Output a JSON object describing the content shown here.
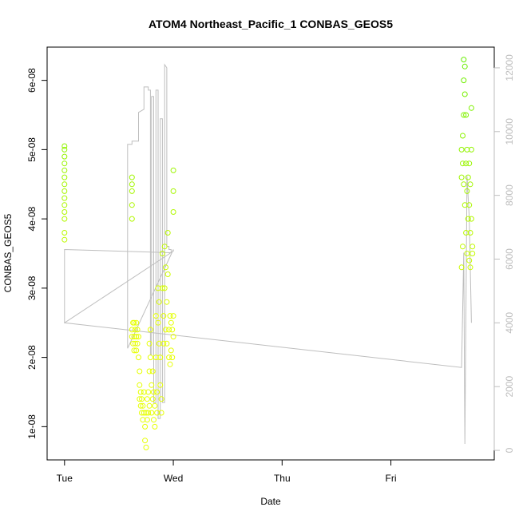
{
  "chart_data": {
    "type": "scatter",
    "title": "ATOM4 Northeast_Pacific_1 CONBAS_GEOS5",
    "xlabel": "Date",
    "ylabel": "CONBAS_GEOS5",
    "y2label": "",
    "grid": false,
    "legend": "none",
    "x_ticks": [
      {
        "value": 0,
        "label": "Tue"
      },
      {
        "value": 1,
        "label": "Wed"
      },
      {
        "value": 2,
        "label": "Thu"
      },
      {
        "value": 3,
        "label": "Fri"
      }
    ],
    "y_ticks": [
      {
        "value": 1e-08,
        "label": "1e-08"
      },
      {
        "value": 2e-08,
        "label": "2e-08"
      },
      {
        "value": 3e-08,
        "label": "3e-08"
      },
      {
        "value": 4e-08,
        "label": "4e-08"
      },
      {
        "value": 5e-08,
        "label": "5e-08"
      },
      {
        "value": 6e-08,
        "label": "6e-08"
      }
    ],
    "y2_ticks": [
      {
        "value": 0,
        "label": "0"
      },
      {
        "value": 2000,
        "label": "2000"
      },
      {
        "value": 4000,
        "label": "4000"
      },
      {
        "value": 6000,
        "label": "6000"
      },
      {
        "value": 8000,
        "label": "8000"
      },
      {
        "value": 10000,
        "label": "10000"
      },
      {
        "value": 12000,
        "label": "12000"
      }
    ],
    "xlim": [
      -0.16,
      3.95
    ],
    "ylim": [
      5.2e-09,
      6.48e-08
    ],
    "y2lim": [
      -300,
      12650
    ],
    "colors": {
      "axis": "#000000",
      "altitude_line": "#bebebe",
      "right_axis": "#bdbdbd",
      "point_low": "#e6ff00",
      "point_high": "#66ee00"
    },
    "altitude_series": {
      "x": [
        0.0,
        0.0,
        0.0,
        1.0,
        1.0,
        0.58,
        0.58,
        0.62,
        0.62,
        0.68,
        0.68,
        0.73,
        0.73,
        0.77,
        0.77,
        0.79,
        0.79,
        0.8,
        0.8,
        0.82,
        0.82,
        0.84,
        0.84,
        0.86,
        0.86,
        0.88,
        0.88,
        0.9,
        0.9,
        0.92,
        0.92,
        0.94,
        0.94,
        0.96,
        0.96,
        0.98,
        0.98,
        0.0,
        0.0,
        3.65,
        3.65,
        3.67,
        3.67,
        3.68,
        3.68,
        3.7,
        3.7,
        3.72,
        3.72,
        3.74,
        3.74
      ],
      "y": [
        6300,
        6300,
        4000,
        6250,
        6300,
        3200,
        9600,
        9600,
        9700,
        9700,
        10600,
        10700,
        11400,
        11400,
        11300,
        11300,
        3000,
        3000,
        11100,
        11100,
        1500,
        1500,
        11300,
        11300,
        1000,
        1000,
        10400,
        10400,
        1500,
        1500,
        12100,
        12000,
        6400,
        6400,
        6300,
        6300,
        6200,
        6300,
        4000,
        2600,
        2600,
        6200,
        6200,
        200,
        200,
        8600,
        8600,
        7300,
        7300,
        4000,
        4000
      ]
    },
    "series": [
      {
        "x": [
          0.0,
          0.0,
          0.0,
          0.0,
          0.0,
          0.0,
          0.0,
          0.0,
          0.0,
          0.0,
          0.0,
          0.0,
          0.0,
          0.0,
          0.62,
          0.62,
          0.62,
          0.62,
          0.62,
          0.62,
          0.62,
          0.63,
          0.63,
          0.64,
          0.64,
          0.64,
          0.65,
          0.65,
          0.66,
          0.66,
          0.66,
          0.67,
          0.67,
          0.68,
          0.68,
          0.69,
          0.69,
          0.69,
          0.7,
          0.7,
          0.71,
          0.71,
          0.72,
          0.72,
          0.73,
          0.73,
          0.74,
          0.74,
          0.75,
          0.75,
          0.76,
          0.76,
          0.77,
          0.77,
          0.78,
          0.78,
          0.78,
          0.79,
          0.79,
          0.8,
          0.8,
          0.81,
          0.81,
          0.82,
          0.82,
          0.83,
          0.83,
          0.84,
          0.84,
          0.85,
          0.85,
          0.86,
          0.86,
          0.87,
          0.87,
          0.88,
          0.88,
          0.89,
          0.89,
          0.9,
          0.9,
          0.91,
          0.91,
          0.92,
          0.92,
          0.93,
          0.93,
          0.94,
          0.94,
          0.95,
          0.95,
          0.96,
          0.96,
          0.97,
          0.97,
          0.98,
          0.98,
          0.99,
          0.99,
          1.0,
          1.0,
          1.0,
          1.0,
          1.0,
          3.65,
          3.65,
          3.65,
          3.66,
          3.66,
          3.66,
          3.67,
          3.67,
          3.67,
          3.67,
          3.68,
          3.68,
          3.68,
          3.69,
          3.69,
          3.69,
          3.7,
          3.7,
          3.7,
          3.71,
          3.71,
          3.72,
          3.72,
          3.72,
          3.73,
          3.73,
          3.73,
          3.74,
          3.74,
          3.74,
          3.75,
          3.75
        ],
        "y": [
          5.05e-08,
          5e-08,
          4.9e-08,
          4.8e-08,
          4.7e-08,
          4.6e-08,
          4.5e-08,
          4.4e-08,
          4.3e-08,
          4.2e-08,
          4.1e-08,
          4e-08,
          3.8e-08,
          3.7e-08,
          4.6e-08,
          4.5e-08,
          4.4e-08,
          4.2e-08,
          4e-08,
          2.4e-08,
          2.3e-08,
          2.5e-08,
          2.2e-08,
          2.5e-08,
          2.3e-08,
          2.1e-08,
          2.4e-08,
          2.2e-08,
          2.5e-08,
          2.3e-08,
          2.1e-08,
          2.4e-08,
          2.2e-08,
          2.3e-08,
          2e-08,
          1.8e-08,
          1.6e-08,
          1.4e-08,
          1.5e-08,
          1.3e-08,
          1.4e-08,
          1.2e-08,
          1.3e-08,
          1.1e-08,
          1.5e-08,
          1.2e-08,
          1e-08,
          8e-09,
          7e-09,
          1.2e-08,
          1.4e-08,
          1.1e-08,
          1.5e-08,
          1.2e-08,
          2.2e-08,
          1.8e-08,
          1.3e-08,
          2.4e-08,
          2e-08,
          1.6e-08,
          1.2e-08,
          1.8e-08,
          1.4e-08,
          1.5e-08,
          1.1e-08,
          1.3e-08,
          1e-08,
          2.6e-08,
          2e-08,
          1.5e-08,
          1.2e-08,
          3e-08,
          2.5e-08,
          2.8e-08,
          2.2e-08,
          2e-08,
          1.6e-08,
          1.4e-08,
          1.2e-08,
          3.5e-08,
          3e-08,
          2.6e-08,
          2.2e-08,
          3.6e-08,
          3e-08,
          2.4e-08,
          3.3e-08,
          2.8e-08,
          2.2e-08,
          3.8e-08,
          3.2e-08,
          2.4e-08,
          2e-08,
          2.6e-08,
          1.9e-08,
          2.5e-08,
          2.1e-08,
          2.4e-08,
          2e-08,
          4.7e-08,
          4.4e-08,
          4.1e-08,
          2.6e-08,
          2.3e-08,
          5e-08,
          4.6e-08,
          3.3e-08,
          5.2e-08,
          4.8e-08,
          3.6e-08,
          6.3e-08,
          6e-08,
          5.5e-08,
          4.5e-08,
          6.2e-08,
          5.8e-08,
          4.2e-08,
          5.5e-08,
          4.8e-08,
          3.8e-08,
          5e-08,
          4.4e-08,
          3.5e-08,
          4.6e-08,
          4e-08,
          4.8e-08,
          4.2e-08,
          3.4e-08,
          4.5e-08,
          3.8e-08,
          3.3e-08,
          5.6e-08,
          5e-08,
          4e-08,
          3.6e-08,
          3.5e-08
        ]
      }
    ]
  }
}
